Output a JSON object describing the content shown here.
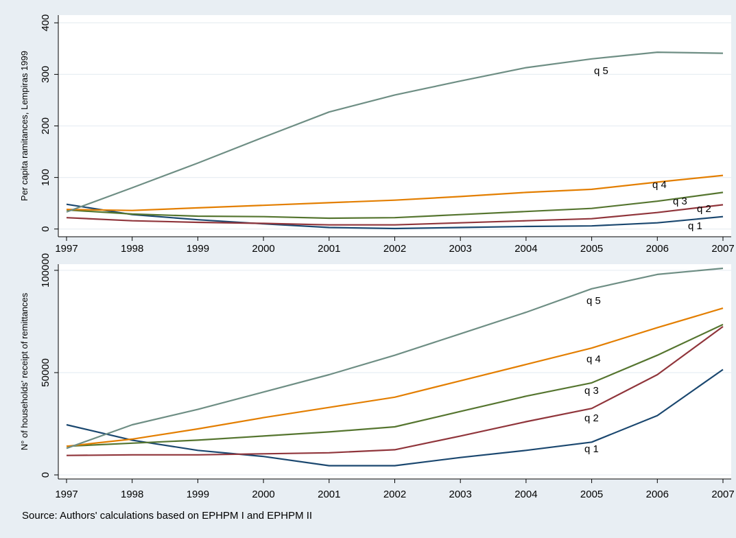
{
  "colors": {
    "background": "#e8eef3",
    "plot_background": "#ffffff",
    "gridline": "#e8eef3",
    "axis": "#000000"
  },
  "source_note": "Source: Authors' calculations based on EPHPM I and EPHPM II",
  "chart_data": [
    {
      "type": "line",
      "title": "",
      "xlabel": "",
      "ylabel": "Per capita ramitances, Lempiras 1999",
      "x": [
        1997,
        1998,
        1999,
        2000,
        2001,
        2002,
        2003,
        2004,
        2005,
        2006,
        2007
      ],
      "xlim": [
        1997,
        2007
      ],
      "ylim": [
        -15,
        415
      ],
      "yticks": [
        0,
        100,
        200,
        300,
        400
      ],
      "grid": true,
      "legend": "none",
      "series": [
        {
          "name": "q 1",
          "color": "#1a476f",
          "values": [
            48,
            28,
            18,
            10,
            3,
            1,
            3,
            5,
            6,
            12,
            24
          ]
        },
        {
          "name": "q 2",
          "color": "#90353b",
          "values": [
            22,
            16,
            13,
            11,
            8,
            8,
            12,
            16,
            20,
            32,
            47
          ]
        },
        {
          "name": "q 3",
          "color": "#55752f",
          "values": [
            37,
            29,
            25,
            24,
            21,
            22,
            28,
            34,
            40,
            54,
            71
          ]
        },
        {
          "name": "q 4",
          "color": "#e37e00",
          "values": [
            38,
            36,
            41,
            46,
            51,
            56,
            63,
            71,
            77,
            91,
            104
          ]
        },
        {
          "name": "q 5",
          "color": "#6e8e84",
          "values": [
            33,
            80,
            128,
            178,
            227,
            260,
            287,
            313,
            330,
            343,
            341
          ]
        }
      ]
    },
    {
      "type": "line",
      "title": "",
      "xlabel": "",
      "ylabel": "N° of households' receipt of remittances",
      "x": [
        1997,
        1998,
        1999,
        2000,
        2001,
        2002,
        2003,
        2004,
        2005,
        2006,
        2007
      ],
      "xlim": [
        1997,
        2007
      ],
      "ylim": [
        -2000,
        103000
      ],
      "yticks": [
        0,
        50000,
        100000
      ],
      "grid": true,
      "legend": "none",
      "series": [
        {
          "name": "q 1",
          "color": "#1a476f",
          "values": [
            24500,
            17000,
            12000,
            9000,
            4500,
            4500,
            8500,
            12000,
            16000,
            29000,
            51500
          ]
        },
        {
          "name": "q 2",
          "color": "#90353b",
          "values": [
            9500,
            9800,
            9800,
            10300,
            10800,
            12300,
            19000,
            26000,
            32500,
            49000,
            72500
          ]
        },
        {
          "name": "q 3",
          "color": "#55752f",
          "values": [
            14000,
            15500,
            17000,
            19000,
            21000,
            23500,
            31000,
            38500,
            45000,
            58500,
            73500
          ]
        },
        {
          "name": "q 4",
          "color": "#e37e00",
          "values": [
            14000,
            17500,
            22500,
            28000,
            33000,
            38000,
            46000,
            54000,
            62000,
            72000,
            81500
          ]
        },
        {
          "name": "q 5",
          "color": "#6e8e84",
          "values": [
            13000,
            24500,
            32000,
            40500,
            49000,
            58500,
            69000,
            79500,
            91000,
            98000,
            101000
          ]
        }
      ]
    }
  ]
}
